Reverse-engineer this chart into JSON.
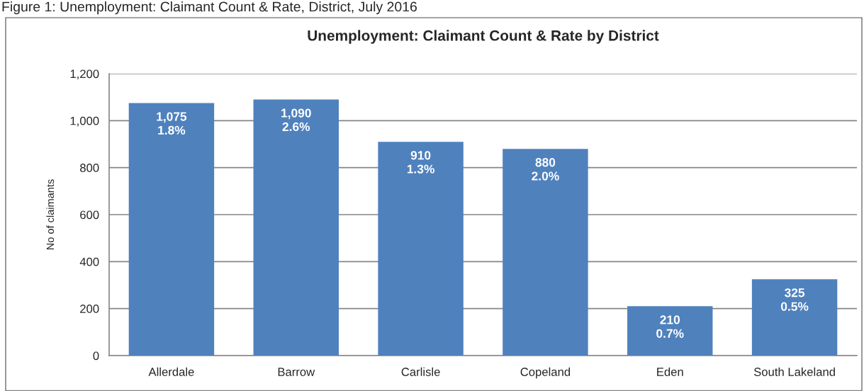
{
  "chart_data": {
    "type": "bar",
    "title": "Unemployment: Claimant Count & Rate by District",
    "ylabel": "No of claimants",
    "annotations": [
      "Figure 1: Unemployment: Claimant Count & Rate, District, July 2016"
    ],
    "categories": [
      "Allerdale",
      "Barrow",
      "Carlisle",
      "Copeland",
      "Eden",
      "South Lakeland"
    ],
    "values": [
      1075,
      1090,
      910,
      880,
      210,
      325
    ],
    "color": "#4f81bd",
    "value_labels": [
      "1,075\n1.8%",
      "1,090\n2.6%",
      "910\n1.3%",
      "880\n2.0%",
      "210\n0.7%",
      "325\n0.5%"
    ],
    "ylim": [
      0,
      1200
    ],
    "yticks": [
      0,
      200,
      400,
      600,
      800,
      {
        "value": 1000,
        "label": "1,000"
      },
      {
        "value": 1200,
        "label": "1,200"
      }
    ],
    "grid": "y"
  }
}
